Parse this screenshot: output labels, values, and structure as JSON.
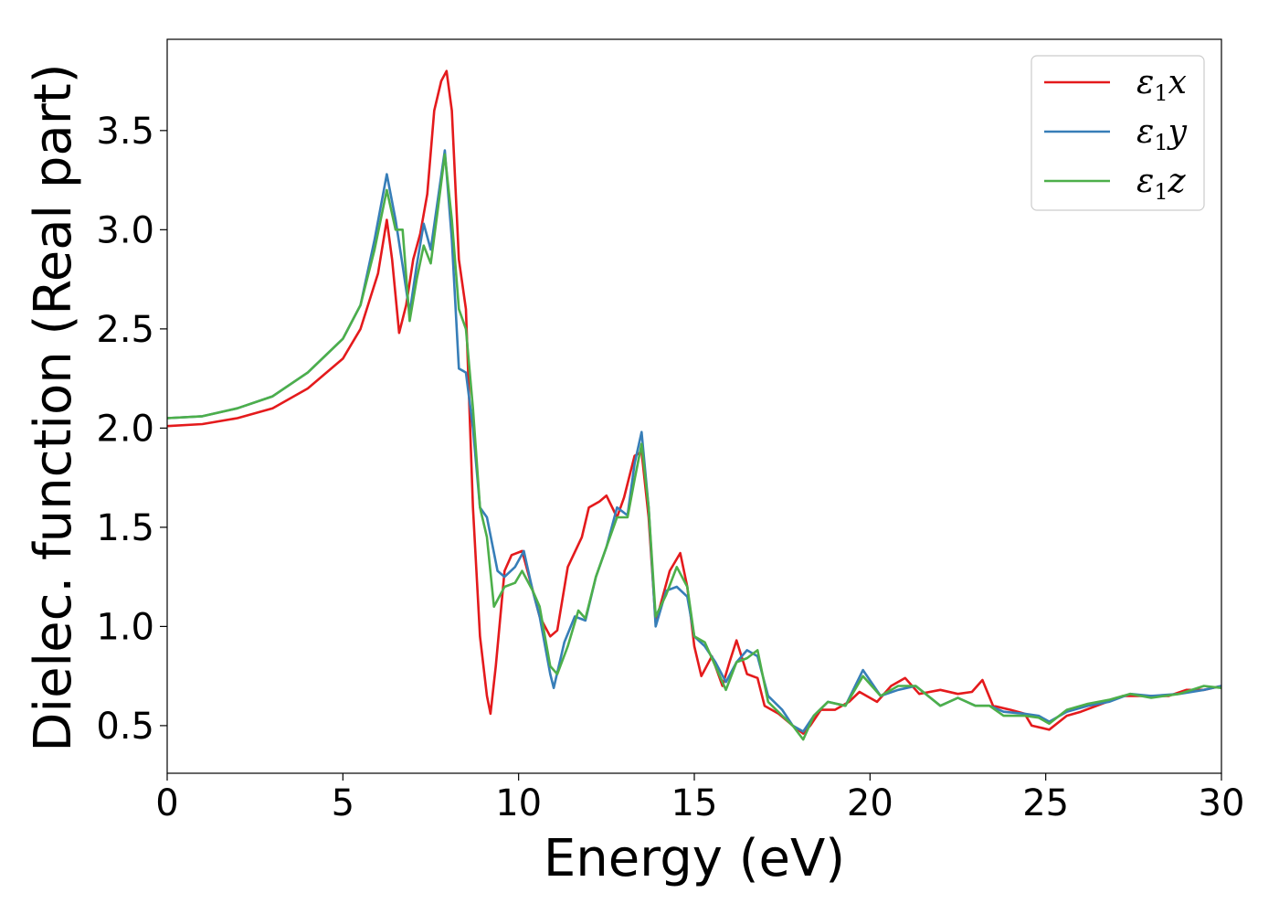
{
  "chart_data": {
    "type": "line",
    "title": "",
    "xlabel": "Energy (eV)",
    "ylabel": "Dielec. function (Real part)",
    "xlim": [
      0,
      30
    ],
    "ylim": [
      0.26,
      3.96
    ],
    "xticks": [
      "0",
      "5",
      "10",
      "15",
      "20",
      "25",
      "30"
    ],
    "yticks": [
      "0.5",
      "1.0",
      "1.5",
      "2.0",
      "2.5",
      "3.0",
      "3.5"
    ],
    "grid": false,
    "legend_position": "top-right",
    "series": [
      {
        "name": "ε₁x",
        "label_main": "ε",
        "label_sub": "1",
        "label_tail": "x",
        "color": "#e41a1c",
        "points": [
          [
            0,
            2.01
          ],
          [
            1,
            2.02
          ],
          [
            2,
            2.05
          ],
          [
            3,
            2.1
          ],
          [
            4,
            2.2
          ],
          [
            5,
            2.35
          ],
          [
            5.5,
            2.5
          ],
          [
            6.0,
            2.78
          ],
          [
            6.25,
            3.05
          ],
          [
            6.4,
            2.85
          ],
          [
            6.6,
            2.48
          ],
          [
            6.8,
            2.62
          ],
          [
            7.0,
            2.85
          ],
          [
            7.2,
            2.98
          ],
          [
            7.4,
            3.18
          ],
          [
            7.6,
            3.6
          ],
          [
            7.8,
            3.75
          ],
          [
            7.95,
            3.8
          ],
          [
            8.1,
            3.6
          ],
          [
            8.3,
            2.85
          ],
          [
            8.5,
            2.6
          ],
          [
            8.7,
            1.6
          ],
          [
            8.9,
            0.95
          ],
          [
            9.1,
            0.65
          ],
          [
            9.2,
            0.56
          ],
          [
            9.35,
            0.8
          ],
          [
            9.6,
            1.28
          ],
          [
            9.8,
            1.36
          ],
          [
            10.1,
            1.38
          ],
          [
            10.3,
            1.25
          ],
          [
            10.6,
            1.05
          ],
          [
            10.9,
            0.95
          ],
          [
            11.1,
            0.98
          ],
          [
            11.4,
            1.3
          ],
          [
            11.8,
            1.45
          ],
          [
            12.0,
            1.6
          ],
          [
            12.3,
            1.63
          ],
          [
            12.5,
            1.66
          ],
          [
            12.8,
            1.55
          ],
          [
            13.0,
            1.65
          ],
          [
            13.3,
            1.86
          ],
          [
            13.5,
            1.88
          ],
          [
            13.7,
            1.55
          ],
          [
            13.9,
            1.02
          ],
          [
            14.1,
            1.15
          ],
          [
            14.3,
            1.28
          ],
          [
            14.6,
            1.37
          ],
          [
            14.8,
            1.2
          ],
          [
            15.0,
            0.9
          ],
          [
            15.2,
            0.75
          ],
          [
            15.5,
            0.85
          ],
          [
            15.8,
            0.7
          ],
          [
            16.0,
            0.82
          ],
          [
            16.2,
            0.93
          ],
          [
            16.5,
            0.76
          ],
          [
            16.8,
            0.74
          ],
          [
            17.0,
            0.6
          ],
          [
            17.4,
            0.56
          ],
          [
            17.8,
            0.5
          ],
          [
            18.1,
            0.46
          ],
          [
            18.3,
            0.5
          ],
          [
            18.6,
            0.58
          ],
          [
            19.0,
            0.58
          ],
          [
            19.4,
            0.62
          ],
          [
            19.7,
            0.67
          ],
          [
            20.2,
            0.62
          ],
          [
            20.6,
            0.7
          ],
          [
            21.0,
            0.74
          ],
          [
            21.4,
            0.66
          ],
          [
            22.0,
            0.68
          ],
          [
            22.5,
            0.66
          ],
          [
            22.9,
            0.67
          ],
          [
            23.2,
            0.73
          ],
          [
            23.5,
            0.6
          ],
          [
            24.0,
            0.58
          ],
          [
            24.4,
            0.56
          ],
          [
            24.6,
            0.5
          ],
          [
            25.1,
            0.48
          ],
          [
            25.6,
            0.55
          ],
          [
            26.0,
            0.57
          ],
          [
            26.6,
            0.61
          ],
          [
            27.2,
            0.65
          ],
          [
            28.0,
            0.65
          ],
          [
            28.5,
            0.65
          ],
          [
            29.0,
            0.68
          ],
          [
            29.5,
            0.68
          ],
          [
            30,
            0.7
          ]
        ]
      },
      {
        "name": "ε₁y",
        "label_main": "ε",
        "label_sub": "1",
        "label_tail": "y",
        "color": "#377eb8",
        "points": [
          [
            0,
            2.05
          ],
          [
            1,
            2.06
          ],
          [
            2,
            2.1
          ],
          [
            3,
            2.16
          ],
          [
            4,
            2.28
          ],
          [
            5,
            2.45
          ],
          [
            5.5,
            2.62
          ],
          [
            5.9,
            2.95
          ],
          [
            6.25,
            3.28
          ],
          [
            6.5,
            3.05
          ],
          [
            6.7,
            2.82
          ],
          [
            6.9,
            2.58
          ],
          [
            7.1,
            2.82
          ],
          [
            7.3,
            3.03
          ],
          [
            7.5,
            2.9
          ],
          [
            7.7,
            3.15
          ],
          [
            7.9,
            3.4
          ],
          [
            8.1,
            2.95
          ],
          [
            8.3,
            2.3
          ],
          [
            8.5,
            2.28
          ],
          [
            8.7,
            2.0
          ],
          [
            8.9,
            1.6
          ],
          [
            9.1,
            1.55
          ],
          [
            9.4,
            1.28
          ],
          [
            9.6,
            1.25
          ],
          [
            9.9,
            1.3
          ],
          [
            10.15,
            1.38
          ],
          [
            10.4,
            1.18
          ],
          [
            10.6,
            1.05
          ],
          [
            10.9,
            0.76
          ],
          [
            11.0,
            0.69
          ],
          [
            11.3,
            0.92
          ],
          [
            11.6,
            1.05
          ],
          [
            11.9,
            1.03
          ],
          [
            12.2,
            1.25
          ],
          [
            12.5,
            1.4
          ],
          [
            12.8,
            1.6
          ],
          [
            13.1,
            1.56
          ],
          [
            13.3,
            1.82
          ],
          [
            13.5,
            1.98
          ],
          [
            13.7,
            1.6
          ],
          [
            13.9,
            1.0
          ],
          [
            14.2,
            1.18
          ],
          [
            14.5,
            1.2
          ],
          [
            14.8,
            1.15
          ],
          [
            15.0,
            0.95
          ],
          [
            15.3,
            0.9
          ],
          [
            15.6,
            0.82
          ],
          [
            15.9,
            0.72
          ],
          [
            16.2,
            0.82
          ],
          [
            16.5,
            0.88
          ],
          [
            16.8,
            0.85
          ],
          [
            17.1,
            0.65
          ],
          [
            17.5,
            0.58
          ],
          [
            17.8,
            0.5
          ],
          [
            18.1,
            0.47
          ],
          [
            18.4,
            0.55
          ],
          [
            18.8,
            0.62
          ],
          [
            19.3,
            0.6
          ],
          [
            19.8,
            0.78
          ],
          [
            20.3,
            0.65
          ],
          [
            20.8,
            0.68
          ],
          [
            21.3,
            0.7
          ],
          [
            22.0,
            0.6
          ],
          [
            22.5,
            0.64
          ],
          [
            23.0,
            0.6
          ],
          [
            23.4,
            0.6
          ],
          [
            23.8,
            0.57
          ],
          [
            24.4,
            0.56
          ],
          [
            24.8,
            0.55
          ],
          [
            25.1,
            0.52
          ],
          [
            25.6,
            0.57
          ],
          [
            26.2,
            0.6
          ],
          [
            26.8,
            0.62
          ],
          [
            27.4,
            0.66
          ],
          [
            28.0,
            0.65
          ],
          [
            28.8,
            0.66
          ],
          [
            29.5,
            0.68
          ],
          [
            30,
            0.7
          ]
        ]
      },
      {
        "name": "ε₁z",
        "label_main": "ε",
        "label_sub": "1",
        "label_tail": "z",
        "color": "#4daf4a",
        "points": [
          [
            0,
            2.05
          ],
          [
            1,
            2.06
          ],
          [
            2,
            2.1
          ],
          [
            3,
            2.16
          ],
          [
            4,
            2.28
          ],
          [
            5,
            2.45
          ],
          [
            5.5,
            2.62
          ],
          [
            5.9,
            2.9
          ],
          [
            6.25,
            3.2
          ],
          [
            6.5,
            3.0
          ],
          [
            6.7,
            3.0
          ],
          [
            6.9,
            2.54
          ],
          [
            7.1,
            2.75
          ],
          [
            7.3,
            2.92
          ],
          [
            7.5,
            2.83
          ],
          [
            7.7,
            3.1
          ],
          [
            7.9,
            3.38
          ],
          [
            8.1,
            3.05
          ],
          [
            8.3,
            2.6
          ],
          [
            8.5,
            2.5
          ],
          [
            8.7,
            2.1
          ],
          [
            8.9,
            1.6
          ],
          [
            9.1,
            1.45
          ],
          [
            9.3,
            1.1
          ],
          [
            9.6,
            1.2
          ],
          [
            9.9,
            1.22
          ],
          [
            10.1,
            1.28
          ],
          [
            10.4,
            1.18
          ],
          [
            10.6,
            1.1
          ],
          [
            10.9,
            0.8
          ],
          [
            11.1,
            0.76
          ],
          [
            11.4,
            0.9
          ],
          [
            11.7,
            1.08
          ],
          [
            11.9,
            1.04
          ],
          [
            12.2,
            1.25
          ],
          [
            12.5,
            1.4
          ],
          [
            12.8,
            1.55
          ],
          [
            13.1,
            1.55
          ],
          [
            13.3,
            1.74
          ],
          [
            13.5,
            1.92
          ],
          [
            13.7,
            1.6
          ],
          [
            13.9,
            1.05
          ],
          [
            14.2,
            1.16
          ],
          [
            14.5,
            1.3
          ],
          [
            14.8,
            1.2
          ],
          [
            15.0,
            0.95
          ],
          [
            15.3,
            0.92
          ],
          [
            15.6,
            0.8
          ],
          [
            15.9,
            0.68
          ],
          [
            16.2,
            0.82
          ],
          [
            16.5,
            0.84
          ],
          [
            16.8,
            0.88
          ],
          [
            17.1,
            0.62
          ],
          [
            17.5,
            0.55
          ],
          [
            17.8,
            0.5
          ],
          [
            18.1,
            0.43
          ],
          [
            18.4,
            0.55
          ],
          [
            18.8,
            0.62
          ],
          [
            19.3,
            0.6
          ],
          [
            19.8,
            0.75
          ],
          [
            20.3,
            0.65
          ],
          [
            20.8,
            0.7
          ],
          [
            21.3,
            0.7
          ],
          [
            22.0,
            0.6
          ],
          [
            22.5,
            0.64
          ],
          [
            23.0,
            0.6
          ],
          [
            23.4,
            0.6
          ],
          [
            23.8,
            0.55
          ],
          [
            24.4,
            0.55
          ],
          [
            24.8,
            0.54
          ],
          [
            25.1,
            0.51
          ],
          [
            25.6,
            0.58
          ],
          [
            26.2,
            0.61
          ],
          [
            26.8,
            0.63
          ],
          [
            27.4,
            0.66
          ],
          [
            28.0,
            0.64
          ],
          [
            28.8,
            0.66
          ],
          [
            29.5,
            0.7
          ],
          [
            30,
            0.69
          ]
        ]
      }
    ]
  }
}
